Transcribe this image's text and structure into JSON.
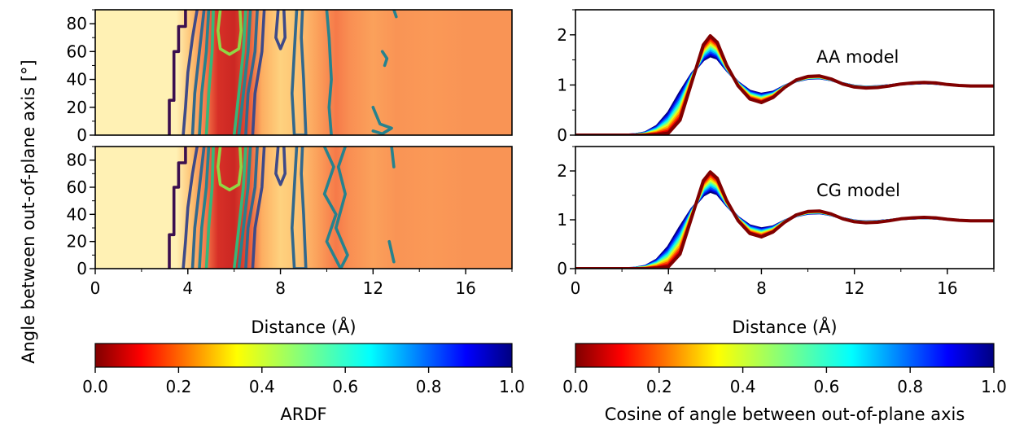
{
  "chart_data": [
    {
      "type": "heatmap",
      "panel": "top-left",
      "xlabel": "",
      "ylabel": "",
      "xlim": [
        0,
        18
      ],
      "ylim": [
        0,
        90
      ],
      "x_ticks": [
        "0",
        "4",
        "8",
        "12",
        "16"
      ],
      "y_ticks": [
        "0",
        "20",
        "40",
        "60",
        "80"
      ],
      "radial_profile": [
        [
          0,
          0.1
        ],
        [
          3.5,
          0.1
        ],
        [
          4.2,
          0.42
        ],
        [
          4.8,
          0.72
        ],
        [
          5.3,
          0.9
        ],
        [
          6.0,
          0.95
        ],
        [
          6.6,
          0.82
        ],
        [
          7.2,
          0.5
        ],
        [
          8.0,
          0.32
        ],
        [
          8.8,
          0.4
        ],
        [
          9.6,
          0.55
        ],
        [
          10.4,
          0.7
        ],
        [
          11.0,
          0.62
        ],
        [
          12.0,
          0.55
        ],
        [
          13.0,
          0.6
        ],
        [
          14.5,
          0.58
        ],
        [
          16.0,
          0.6
        ],
        [
          18.0,
          0.6
        ]
      ],
      "contours": [
        {
          "color": "#3b0f4f",
          "points": [
            [
              3.9,
              90
            ],
            [
              3.9,
              78
            ],
            [
              3.6,
              78
            ],
            [
              3.6,
              60
            ],
            [
              3.4,
              60
            ],
            [
              3.4,
              25
            ],
            [
              3.2,
              25
            ],
            [
              3.2,
              0
            ]
          ]
        },
        {
          "color": "#3e4a89",
          "points": [
            [
              4.4,
              90
            ],
            [
              4.2,
              70
            ],
            [
              4.0,
              45
            ],
            [
              3.9,
              20
            ],
            [
              3.8,
              0
            ]
          ]
        },
        {
          "color": "#3e4a89",
          "points": [
            [
              7.3,
              90
            ],
            [
              7.2,
              60
            ],
            [
              6.9,
              30
            ],
            [
              6.8,
              0
            ]
          ]
        },
        {
          "color": "#31688e",
          "points": [
            [
              4.7,
              90
            ],
            [
              4.5,
              60
            ],
            [
              4.3,
              30
            ],
            [
              4.2,
              0
            ]
          ]
        },
        {
          "color": "#31688e",
          "points": [
            [
              7.0,
              90
            ],
            [
              6.9,
              60
            ],
            [
              6.6,
              30
            ],
            [
              6.5,
              0
            ]
          ]
        },
        {
          "color": "#26828e",
          "points": [
            [
              4.9,
              90
            ],
            [
              4.8,
              60
            ],
            [
              4.6,
              30
            ],
            [
              4.5,
              0
            ]
          ]
        },
        {
          "color": "#26828e",
          "points": [
            [
              6.7,
              90
            ],
            [
              6.6,
              60
            ],
            [
              6.4,
              30
            ],
            [
              6.2,
              0
            ]
          ]
        },
        {
          "color": "#35b779",
          "points": [
            [
              5.1,
              90
            ],
            [
              5.05,
              60
            ],
            [
              4.9,
              30
            ],
            [
              4.8,
              0
            ]
          ]
        },
        {
          "color": "#35b779",
          "points": [
            [
              6.5,
              90
            ],
            [
              6.4,
              60
            ],
            [
              6.2,
              30
            ],
            [
              6.0,
              0
            ]
          ]
        },
        {
          "color": "#8fd744",
          "points": [
            [
              5.4,
              90
            ],
            [
              5.3,
              75
            ],
            [
              5.4,
              62
            ],
            [
              5.8,
              58
            ],
            [
              6.2,
              62
            ],
            [
              6.3,
              75
            ],
            [
              6.25,
              90
            ]
          ]
        },
        {
          "color": "#3e4a89",
          "points": [
            [
              7.9,
              90
            ],
            [
              7.8,
              70
            ],
            [
              8.0,
              62
            ],
            [
              8.2,
              70
            ],
            [
              8.15,
              90
            ]
          ]
        },
        {
          "color": "#31688e",
          "points": [
            [
              8.7,
              90
            ],
            [
              8.6,
              60
            ],
            [
              8.5,
              30
            ],
            [
              8.6,
              0
            ],
            [
              9.1,
              0
            ],
            [
              9.0,
              40
            ],
            [
              8.9,
              70
            ],
            [
              8.95,
              90
            ]
          ]
        },
        {
          "color": "#26828e",
          "points": [
            [
              10.0,
              90
            ],
            [
              10.1,
              70
            ],
            [
              10.2,
              40
            ],
            [
              10.1,
              20
            ],
            [
              10.2,
              0
            ]
          ]
        },
        {
          "color": "#26828e",
          "points": [
            [
              12.0,
              20
            ],
            [
              12.3,
              8
            ],
            [
              12.8,
              5
            ],
            [
              12.4,
              1
            ],
            [
              12.0,
              3
            ]
          ]
        },
        {
          "color": "#26828e",
          "points": [
            [
              12.4,
              60
            ],
            [
              12.6,
              55
            ],
            [
              12.5,
              50
            ]
          ]
        },
        {
          "color": "#26828e",
          "points": [
            [
              12.9,
              90
            ],
            [
              13.0,
              85
            ]
          ]
        }
      ]
    },
    {
      "type": "heatmap",
      "panel": "bottom-left",
      "xlabel": "Distance (Å)",
      "ylabel": "",
      "xlim": [
        0,
        18
      ],
      "ylim": [
        0,
        90
      ],
      "x_ticks": [
        "0",
        "4",
        "8",
        "12",
        "16"
      ],
      "y_ticks": [
        "0",
        "20",
        "40",
        "60",
        "80"
      ],
      "radial_profile": [
        [
          0,
          0.1
        ],
        [
          3.5,
          0.1
        ],
        [
          4.2,
          0.42
        ],
        [
          4.8,
          0.72
        ],
        [
          5.3,
          0.9
        ],
        [
          6.0,
          0.95
        ],
        [
          6.6,
          0.82
        ],
        [
          7.2,
          0.5
        ],
        [
          8.0,
          0.32
        ],
        [
          8.8,
          0.4
        ],
        [
          9.6,
          0.55
        ],
        [
          10.4,
          0.7
        ],
        [
          11.0,
          0.62
        ],
        [
          12.0,
          0.55
        ],
        [
          13.0,
          0.6
        ],
        [
          14.5,
          0.58
        ],
        [
          16.0,
          0.6
        ],
        [
          18.0,
          0.6
        ]
      ],
      "contours": [
        {
          "color": "#3b0f4f",
          "points": [
            [
              3.9,
              90
            ],
            [
              3.9,
              78
            ],
            [
              3.6,
              78
            ],
            [
              3.6,
              60
            ],
            [
              3.4,
              60
            ],
            [
              3.4,
              25
            ],
            [
              3.2,
              25
            ],
            [
              3.2,
              0
            ]
          ]
        },
        {
          "color": "#3e4a89",
          "points": [
            [
              4.4,
              90
            ],
            [
              4.2,
              70
            ],
            [
              4.0,
              45
            ],
            [
              3.9,
              20
            ],
            [
              3.8,
              0
            ]
          ]
        },
        {
          "color": "#3e4a89",
          "points": [
            [
              7.3,
              90
            ],
            [
              7.2,
              60
            ],
            [
              6.9,
              30
            ],
            [
              6.8,
              0
            ]
          ]
        },
        {
          "color": "#31688e",
          "points": [
            [
              4.7,
              90
            ],
            [
              4.5,
              60
            ],
            [
              4.3,
              30
            ],
            [
              4.2,
              0
            ]
          ]
        },
        {
          "color": "#31688e",
          "points": [
            [
              7.0,
              90
            ],
            [
              6.9,
              60
            ],
            [
              6.6,
              30
            ],
            [
              6.5,
              0
            ]
          ]
        },
        {
          "color": "#26828e",
          "points": [
            [
              4.9,
              90
            ],
            [
              4.8,
              60
            ],
            [
              4.6,
              30
            ],
            [
              4.5,
              0
            ]
          ]
        },
        {
          "color": "#26828e",
          "points": [
            [
              6.7,
              90
            ],
            [
              6.6,
              60
            ],
            [
              6.4,
              30
            ],
            [
              6.2,
              0
            ]
          ]
        },
        {
          "color": "#35b779",
          "points": [
            [
              5.1,
              90
            ],
            [
              5.05,
              60
            ],
            [
              4.9,
              30
            ],
            [
              4.8,
              0
            ]
          ]
        },
        {
          "color": "#35b779",
          "points": [
            [
              6.5,
              90
            ],
            [
              6.4,
              60
            ],
            [
              6.2,
              30
            ],
            [
              6.0,
              0
            ]
          ]
        },
        {
          "color": "#8fd744",
          "points": [
            [
              5.4,
              90
            ],
            [
              5.3,
              75
            ],
            [
              5.4,
              62
            ],
            [
              5.8,
              58
            ],
            [
              6.2,
              62
            ],
            [
              6.3,
              75
            ],
            [
              6.25,
              90
            ]
          ]
        },
        {
          "color": "#3e4a89",
          "points": [
            [
              7.9,
              90
            ],
            [
              7.8,
              70
            ],
            [
              8.0,
              62
            ],
            [
              8.2,
              70
            ],
            [
              8.15,
              90
            ]
          ]
        },
        {
          "color": "#31688e",
          "points": [
            [
              8.7,
              90
            ],
            [
              8.6,
              60
            ],
            [
              8.5,
              30
            ],
            [
              8.6,
              0
            ],
            [
              9.1,
              0
            ],
            [
              9.0,
              40
            ],
            [
              8.9,
              70
            ],
            [
              8.95,
              90
            ]
          ]
        },
        {
          "color": "#26828e",
          "points": [
            [
              9.9,
              90
            ],
            [
              10.3,
              75
            ],
            [
              9.9,
              55
            ],
            [
              10.4,
              40
            ],
            [
              10.0,
              20
            ],
            [
              10.6,
              0
            ],
            [
              10.9,
              10
            ],
            [
              10.4,
              30
            ],
            [
              10.8,
              55
            ],
            [
              10.5,
              75
            ],
            [
              10.8,
              90
            ]
          ]
        },
        {
          "color": "#26828e",
          "points": [
            [
              12.8,
              90
            ],
            [
              12.9,
              75
            ]
          ]
        },
        {
          "color": "#26828e",
          "points": [
            [
              12.7,
              20
            ],
            [
              12.9,
              5
            ]
          ]
        }
      ]
    },
    {
      "type": "line",
      "panel": "top-right",
      "annotation": "AA model",
      "xlabel": "",
      "ylabel": "",
      "xlim": [
        0,
        18
      ],
      "ylim": [
        0,
        2.5
      ],
      "x_ticks": [
        "0",
        "4",
        "8",
        "12",
        "16"
      ],
      "y_ticks": [
        "0",
        "1",
        "2"
      ],
      "series_cos": [
        0,
        0.1,
        0.2,
        0.3,
        0.4,
        0.5,
        0.6,
        0.7,
        0.8,
        0.9,
        1.0
      ],
      "x": [
        0,
        2,
        2.5,
        3,
        3.5,
        4,
        4.5,
        5,
        5.5,
        5.8,
        6.1,
        6.5,
        7,
        7.5,
        8,
        8.5,
        9,
        9.5,
        10,
        10.5,
        11,
        11.5,
        12,
        12.5,
        13,
        13.5,
        14,
        14.5,
        15,
        15.5,
        16,
        16.5,
        17,
        18
      ],
      "curve_cos0": [
        0,
        0,
        0,
        0,
        0.01,
        0.04,
        0.3,
        1.05,
        1.8,
        1.98,
        1.85,
        1.4,
        0.98,
        0.72,
        0.65,
        0.75,
        0.95,
        1.1,
        1.17,
        1.18,
        1.12,
        1.02,
        0.96,
        0.94,
        0.95,
        0.98,
        1.02,
        1.04,
        1.05,
        1.04,
        1.01,
        0.99,
        0.98,
        0.98
      ],
      "curve_cos1": [
        0,
        0,
        0.01,
        0.05,
        0.18,
        0.45,
        0.85,
        1.22,
        1.5,
        1.58,
        1.53,
        1.3,
        1.05,
        0.88,
        0.82,
        0.86,
        0.98,
        1.08,
        1.13,
        1.14,
        1.1,
        1.03,
        0.98,
        0.96,
        0.97,
        0.99,
        1.02,
        1.03,
        1.04,
        1.03,
        1.01,
        0.99,
        0.98,
        0.98
      ]
    },
    {
      "type": "line",
      "panel": "bottom-right",
      "annotation": "CG model",
      "xlabel": "Distance (Å)",
      "ylabel": "",
      "xlim": [
        0,
        18
      ],
      "ylim": [
        0,
        2.5
      ],
      "x_ticks": [
        "0",
        "4",
        "8",
        "12",
        "16"
      ],
      "y_ticks": [
        "0",
        "1",
        "2"
      ],
      "series_cos": [
        0,
        0.1,
        0.2,
        0.3,
        0.4,
        0.5,
        0.6,
        0.7,
        0.8,
        0.9,
        1.0
      ],
      "x": [
        0,
        2,
        2.5,
        3,
        3.5,
        4,
        4.5,
        5,
        5.5,
        5.8,
        6.1,
        6.5,
        7,
        7.5,
        8,
        8.5,
        9,
        9.5,
        10,
        10.5,
        11,
        11.5,
        12,
        12.5,
        13,
        13.5,
        14,
        14.5,
        15,
        15.5,
        16,
        16.5,
        17,
        18
      ],
      "curve_cos0": [
        0,
        0,
        0,
        0,
        0.01,
        0.04,
        0.3,
        1.05,
        1.8,
        1.98,
        1.85,
        1.4,
        0.98,
        0.72,
        0.65,
        0.75,
        0.95,
        1.1,
        1.17,
        1.18,
        1.12,
        1.02,
        0.96,
        0.94,
        0.95,
        0.98,
        1.02,
        1.04,
        1.05,
        1.04,
        1.01,
        0.99,
        0.98,
        0.98
      ],
      "curve_cos1": [
        0,
        0,
        0.01,
        0.05,
        0.18,
        0.45,
        0.85,
        1.22,
        1.5,
        1.58,
        1.53,
        1.3,
        1.05,
        0.88,
        0.82,
        0.86,
        0.98,
        1.08,
        1.13,
        1.14,
        1.1,
        1.03,
        0.98,
        0.96,
        0.97,
        0.99,
        1.02,
        1.03,
        1.04,
        1.03,
        1.01,
        0.99,
        0.98,
        0.98
      ]
    }
  ],
  "labels": {
    "shared_ylabel": "Angle between out-of-plane axis [°]",
    "left_xlabel": "Distance (Å)",
    "right_xlabel": "Distance (Å)"
  },
  "colorbars": [
    {
      "label": "ARDF",
      "ticks": [
        "0.0",
        "0.2",
        "0.4",
        "0.6",
        "0.8",
        "1.0"
      ],
      "colormap": "jet_r"
    },
    {
      "label": "Cosine of angle between out-of-plane axis",
      "ticks": [
        "0.0",
        "0.2",
        "0.4",
        "0.6",
        "0.8",
        "1.0"
      ],
      "colormap": "jet_r"
    }
  ],
  "colors": {
    "heat_low": "#fffdd0",
    "contour_palette": "viridis"
  }
}
